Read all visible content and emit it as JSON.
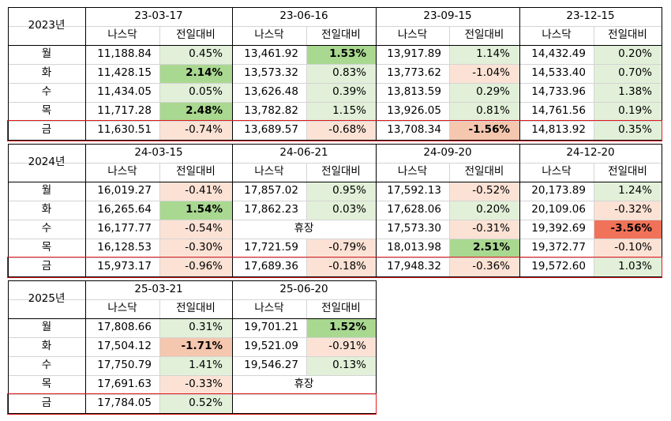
{
  "colors": {
    "green_light": "#e2f0d9",
    "green_mid": "#c6e5b3",
    "green_strong": "#a9d890",
    "red_light": "#fbe2d5",
    "red_mid": "#f5c7ae",
    "red_strong": "#f07359",
    "highlight_border": "#e0191c",
    "grid": "#d4d4d4"
  },
  "headers": {
    "nasdaq": "나스닥",
    "change": "전일대비"
  },
  "days": [
    "월",
    "화",
    "수",
    "목",
    "금"
  ],
  "holiday_label": "휴장",
  "years": [
    {
      "label": "2023년",
      "blocks": [
        {
          "date": "23-03-17",
          "rows": [
            {
              "nasdaq": "11,188.84",
              "change": "0.45%",
              "tone": "g1",
              "bold": false
            },
            {
              "nasdaq": "11,428.15",
              "change": "2.14%",
              "tone": "g3",
              "bold": true
            },
            {
              "nasdaq": "11,434.05",
              "change": "0.05%",
              "tone": "g1",
              "bold": false
            },
            {
              "nasdaq": "11,717.28",
              "change": "2.48%",
              "tone": "g3",
              "bold": true
            },
            {
              "nasdaq": "11,630.51",
              "change": "-0.74%",
              "tone": "r1",
              "bold": false
            }
          ]
        },
        {
          "date": "23-06-16",
          "rows": [
            {
              "nasdaq": "13,461.92",
              "change": "1.53%",
              "tone": "g3",
              "bold": true
            },
            {
              "nasdaq": "13,573.32",
              "change": "0.83%",
              "tone": "g1",
              "bold": false
            },
            {
              "nasdaq": "13,626.48",
              "change": "0.39%",
              "tone": "g1",
              "bold": false
            },
            {
              "nasdaq": "13,782.82",
              "change": "1.15%",
              "tone": "g1",
              "bold": false
            },
            {
              "nasdaq": "13,689.57",
              "change": "-0.68%",
              "tone": "r1",
              "bold": false
            }
          ]
        },
        {
          "date": "23-09-15",
          "rows": [
            {
              "nasdaq": "13,917.89",
              "change": "1.14%",
              "tone": "g1",
              "bold": false
            },
            {
              "nasdaq": "13,773.62",
              "change": "-1.04%",
              "tone": "r1",
              "bold": false
            },
            {
              "nasdaq": "13,813.59",
              "change": "0.29%",
              "tone": "g1",
              "bold": false
            },
            {
              "nasdaq": "13,926.05",
              "change": "0.81%",
              "tone": "g1",
              "bold": false
            },
            {
              "nasdaq": "13,708.34",
              "change": "-1.56%",
              "tone": "r2",
              "bold": true
            }
          ]
        },
        {
          "date": "23-12-15",
          "rows": [
            {
              "nasdaq": "14,432.49",
              "change": "0.20%",
              "tone": "g1",
              "bold": false
            },
            {
              "nasdaq": "14,533.40",
              "change": "0.70%",
              "tone": "g1",
              "bold": false
            },
            {
              "nasdaq": "14,733.96",
              "change": "1.38%",
              "tone": "g1",
              "bold": false
            },
            {
              "nasdaq": "14,761.56",
              "change": "0.19%",
              "tone": "g1",
              "bold": false
            },
            {
              "nasdaq": "14,813.92",
              "change": "0.35%",
              "tone": "g1",
              "bold": false
            }
          ]
        }
      ]
    },
    {
      "label": "2024년",
      "blocks": [
        {
          "date": "24-03-15",
          "rows": [
            {
              "nasdaq": "16,019.27",
              "change": "-0.41%",
              "tone": "r1",
              "bold": false
            },
            {
              "nasdaq": "16,265.64",
              "change": "1.54%",
              "tone": "g3",
              "bold": true
            },
            {
              "nasdaq": "16,177.77",
              "change": "-0.54%",
              "tone": "r1",
              "bold": false
            },
            {
              "nasdaq": "16,128.53",
              "change": "-0.30%",
              "tone": "r1",
              "bold": false
            },
            {
              "nasdaq": "15,973.17",
              "change": "-0.96%",
              "tone": "r1",
              "bold": false
            }
          ]
        },
        {
          "date": "24-06-21",
          "rows": [
            {
              "nasdaq": "17,857.02",
              "change": "0.95%",
              "tone": "g1",
              "bold": false
            },
            {
              "nasdaq": "17,862.23",
              "change": "0.03%",
              "tone": "g1",
              "bold": false
            },
            {
              "holiday": true
            },
            {
              "nasdaq": "17,721.59",
              "change": "-0.79%",
              "tone": "r1",
              "bold": false
            },
            {
              "nasdaq": "17,689.36",
              "change": "-0.18%",
              "tone": "r1",
              "bold": false
            }
          ]
        },
        {
          "date": "24-09-20",
          "rows": [
            {
              "nasdaq": "17,592.13",
              "change": "-0.52%",
              "tone": "r1",
              "bold": false
            },
            {
              "nasdaq": "17,628.06",
              "change": "0.20%",
              "tone": "g1",
              "bold": false
            },
            {
              "nasdaq": "17,573.30",
              "change": "-0.31%",
              "tone": "r1",
              "bold": false
            },
            {
              "nasdaq": "18,013.98",
              "change": "2.51%",
              "tone": "g3",
              "bold": true
            },
            {
              "nasdaq": "17,948.32",
              "change": "-0.36%",
              "tone": "r1",
              "bold": false
            }
          ]
        },
        {
          "date": "24-12-20",
          "rows": [
            {
              "nasdaq": "20,173.89",
              "change": "1.24%",
              "tone": "g1",
              "bold": false
            },
            {
              "nasdaq": "20,109.06",
              "change": "-0.32%",
              "tone": "r1",
              "bold": false
            },
            {
              "nasdaq": "19,392.69",
              "change": "-3.56%",
              "tone": "r3",
              "bold": true
            },
            {
              "nasdaq": "19,372.77",
              "change": "-0.10%",
              "tone": "r1",
              "bold": false
            },
            {
              "nasdaq": "19,572.60",
              "change": "1.03%",
              "tone": "g1",
              "bold": false
            }
          ]
        }
      ]
    },
    {
      "label": "2025년",
      "blocks": [
        {
          "date": "25-03-21",
          "rows": [
            {
              "nasdaq": "17,808.66",
              "change": "0.31%",
              "tone": "g1",
              "bold": false
            },
            {
              "nasdaq": "17,504.12",
              "change": "-1.71%",
              "tone": "r2",
              "bold": true
            },
            {
              "nasdaq": "17,750.79",
              "change": "1.41%",
              "tone": "g1",
              "bold": false
            },
            {
              "nasdaq": "17,691.63",
              "change": "-0.33%",
              "tone": "r1",
              "bold": false
            },
            {
              "nasdaq": "17,784.05",
              "change": "0.52%",
              "tone": "g1",
              "bold": false
            }
          ]
        },
        {
          "date": "25-06-20",
          "rows": [
            {
              "nasdaq": "19,701.21",
              "change": "1.52%",
              "tone": "g3",
              "bold": true
            },
            {
              "nasdaq": "19,521.09",
              "change": "-0.91%",
              "tone": "r1",
              "bold": false
            },
            {
              "nasdaq": "19,546.27",
              "change": "0.13%",
              "tone": "g1",
              "bold": false
            },
            {
              "holiday": true
            },
            {
              "empty": true
            }
          ]
        }
      ]
    }
  ]
}
